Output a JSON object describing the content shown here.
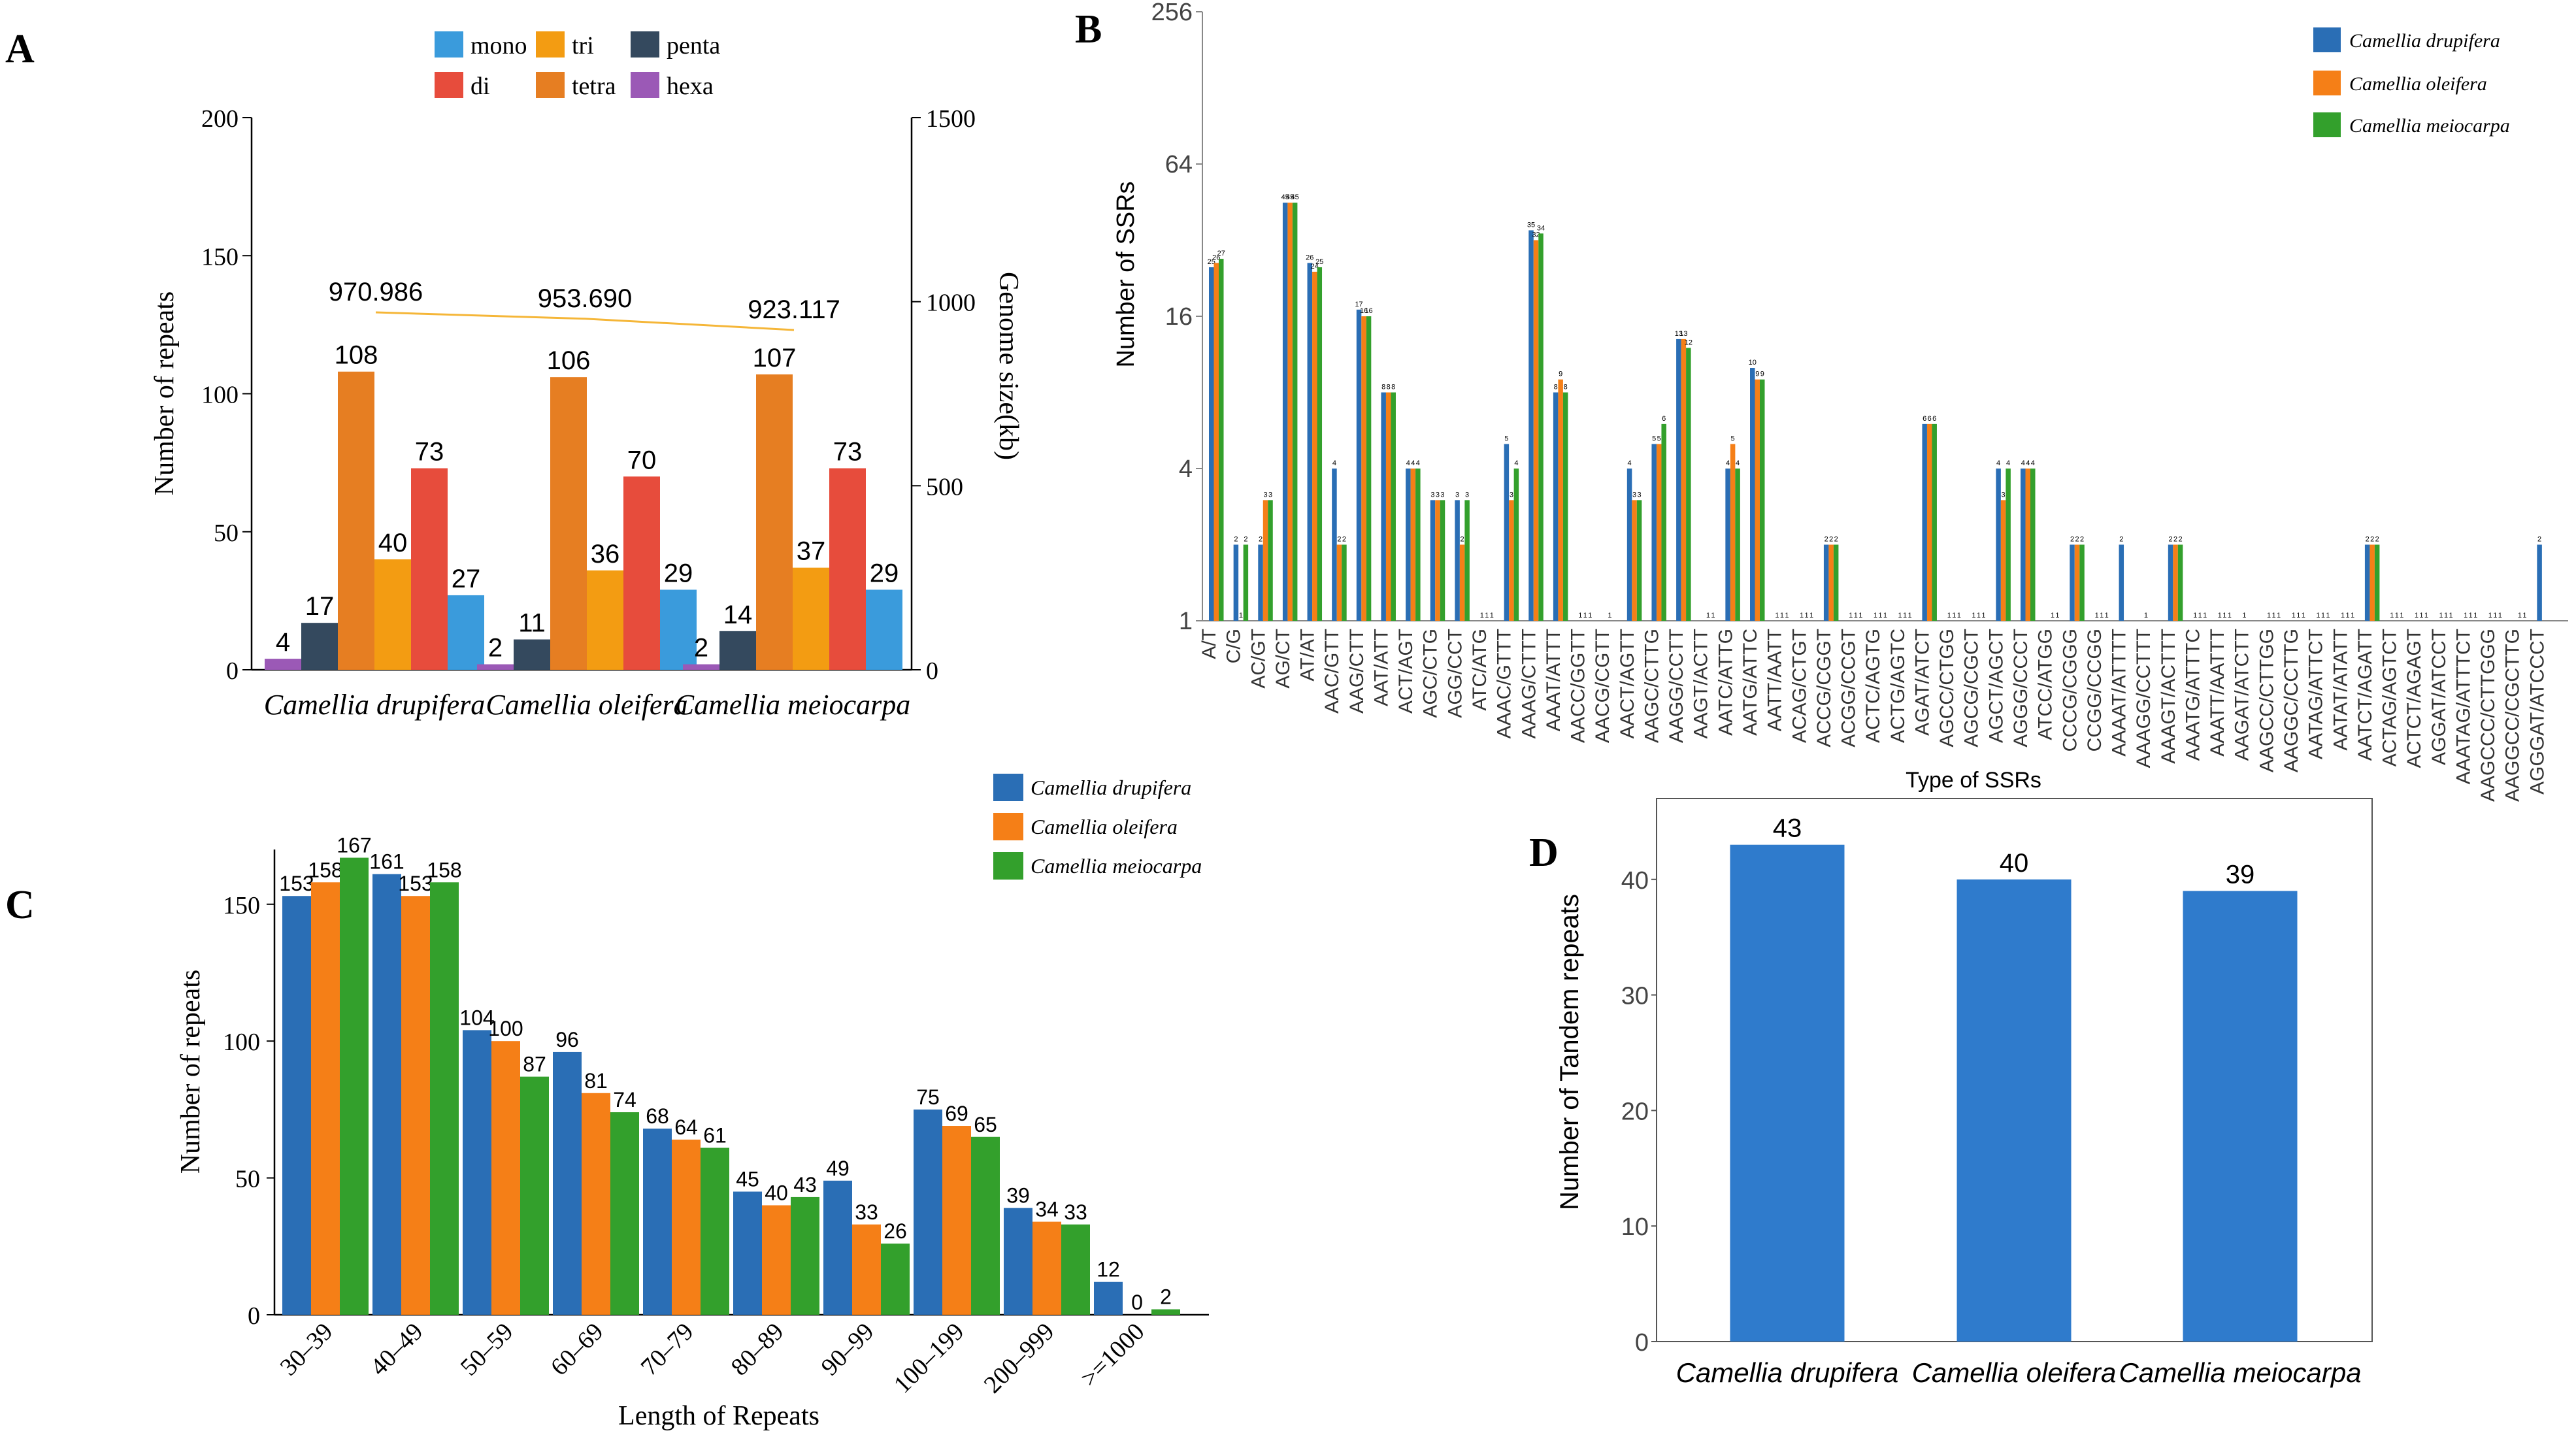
{
  "panel_labels": {
    "a": "A",
    "b": "B",
    "c": "C",
    "d": "D"
  },
  "colors": {
    "mono": "#3a9bdc",
    "di": "#e74c3c",
    "tri": "#f39c12",
    "tetra": "#e67e22",
    "penta": "#34495e",
    "hexa": "#9b59b6",
    "blue": "#2a6eb5",
    "orange": "#f57f17",
    "green": "#33a02c",
    "dblue": "#2f7bcc",
    "genome": "#f5b638"
  },
  "chart_data": [
    {
      "id": "A",
      "type": "bar",
      "legend": [
        "mono",
        "di",
        "tri",
        "tetra",
        "penta",
        "hexa"
      ],
      "categories": [
        "Camellia drupifera",
        "Camellia oleifera",
        "Camellia meiocarpa"
      ],
      "series": [
        {
          "name": "hexa",
          "values": [
            4,
            2,
            2
          ]
        },
        {
          "name": "penta",
          "values": [
            17,
            11,
            14
          ]
        },
        {
          "name": "tetra",
          "values": [
            108,
            106,
            107
          ]
        },
        {
          "name": "tri",
          "values": [
            40,
            36,
            37
          ]
        },
        {
          "name": "di",
          "values": [
            73,
            70,
            73
          ]
        },
        {
          "name": "mono",
          "values": [
            27,
            29,
            29
          ]
        }
      ],
      "genome_size": {
        "name": "Genome size(kb)",
        "values": [
          970.986,
          953.69,
          923.117
        ],
        "labels": [
          "970.986",
          "953.690",
          "923.117"
        ]
      },
      "ylabel": "Number of repeats",
      "y2label": "Genome size(kb)",
      "ylim": [
        0,
        200
      ],
      "yticks": [
        "0",
        "50",
        "100",
        "150",
        "200"
      ],
      "y2lim": [
        0,
        1500
      ],
      "y2ticks": [
        "0",
        "500",
        "1000",
        "1500"
      ]
    },
    {
      "id": "B",
      "type": "bar",
      "yscale": "log2",
      "legend": [
        "Camellia drupifera",
        "Camellia oleifera",
        "Camellia meiocarpa"
      ],
      "ylabel": "Number of SSRs",
      "xlabel": "Type of SSRs",
      "ylim": [
        1,
        256
      ],
      "yticks": [
        "1",
        "4",
        "16",
        "64",
        "256"
      ],
      "categories": [
        "A/T",
        "C/G",
        "AC/GT",
        "AG/CT",
        "AT/AT",
        "AAC/GTT",
        "AAG/CTT",
        "AAT/ATT",
        "ACT/AGT",
        "AGC/CTG",
        "AGG/CCT",
        "ATC/ATG",
        "AAAC/GTTT",
        "AAAG/CTTT",
        "AAAT/ATTT",
        "AACC/GGTT",
        "AACG/CGTT",
        "AACT/AGTT",
        "AAGC/CTTG",
        "AAGG/CCTT",
        "AAGT/ACTT",
        "AATC/ATTG",
        "AATG/ATTC",
        "AATT/AATT",
        "ACAG/CTGT",
        "ACCG/CGGT",
        "ACGG/CCGT",
        "ACTC/AGTG",
        "ACTG/AGTC",
        "AGAT/ATCT",
        "AGCC/CTGG",
        "AGCG/CGCT",
        "AGCT/AGCT",
        "AGGG/CCCT",
        "ATCC/ATGG",
        "CCCG/CGGG",
        "CCGG/CCGG",
        "AAAAT/ATTTT",
        "AAAGG/CCTTT",
        "AAAGT/ACTTT",
        "AAATG/ATTTC",
        "AAATT/AATTT",
        "AAGAT/ATCTT",
        "AAGCC/CTTGG",
        "AAGGC/CCTTG",
        "AATAG/ATTCT",
        "AATAT/ATATT",
        "AATCT/AGATT",
        "ACTAG/AGTCT",
        "ACTCT/AGAGT",
        "AGGAT/ATCCT",
        "AAATAG/ATTTCT",
        "AAGCCC/CTTGGG",
        "AAGGCC/CGCTTG",
        "AGGGAT/ATCCCT"
      ],
      "series": [
        {
          "name": "Camellia drupifera",
          "values": [
            25,
            2,
            2,
            45,
            26,
            4,
            17,
            8,
            4,
            3,
            3,
            1,
            5,
            35,
            8,
            1,
            0,
            4,
            5,
            13,
            0,
            4,
            10,
            1,
            1,
            2,
            1,
            1,
            1,
            6,
            1,
            1,
            4,
            4,
            0,
            2,
            1,
            2,
            1,
            2,
            1,
            1,
            1,
            1,
            1,
            1,
            1,
            2,
            1,
            1,
            1,
            1,
            1,
            0,
            2
          ]
        },
        {
          "name": "Camellia oleifera",
          "values": [
            26,
            1,
            3,
            45,
            24,
            2,
            16,
            8,
            4,
            3,
            2,
            1,
            3,
            32,
            9,
            1,
            1,
            3,
            5,
            13,
            1,
            5,
            9,
            1,
            1,
            2,
            1,
            1,
            1,
            6,
            1,
            1,
            3,
            4,
            1,
            2,
            1,
            0,
            0,
            2,
            1,
            1,
            0,
            1,
            1,
            1,
            1,
            2,
            1,
            1,
            1,
            1,
            1,
            1,
            0
          ]
        },
        {
          "name": "Camellia meiocarpa",
          "values": [
            27,
            2,
            3,
            45,
            25,
            2,
            16,
            8,
            4,
            3,
            3,
            1,
            4,
            34,
            8,
            1,
            0,
            3,
            6,
            12,
            1,
            4,
            9,
            1,
            1,
            2,
            1,
            1,
            1,
            6,
            1,
            1,
            4,
            4,
            1,
            2,
            1,
            0,
            0,
            2,
            1,
            1,
            0,
            1,
            1,
            1,
            1,
            2,
            1,
            1,
            1,
            1,
            1,
            1,
            0
          ]
        }
      ],
      "point_labels": [
        [
          "25",
          "2",
          "2",
          "45",
          "26",
          "4",
          "17",
          "8",
          "4",
          "3",
          "3",
          "1",
          "5",
          "35",
          "8",
          "1",
          "",
          "4",
          "5",
          "13",
          "",
          "4",
          "10",
          "1",
          "1",
          "2",
          "1",
          "1",
          "1",
          "6",
          "1",
          "1",
          "4",
          "4",
          "",
          "2",
          "1",
          "2",
          "1",
          "2",
          "1",
          "1",
          "1",
          "1",
          "1",
          "1",
          "1",
          "2",
          "1",
          "1",
          "1",
          "1",
          "1",
          "",
          "2"
        ],
        [
          "26",
          "1",
          "3",
          "45",
          "24",
          "2",
          "16",
          "8",
          "4",
          "3",
          "2",
          "1",
          "3",
          "32",
          "9",
          "1",
          "1",
          "3",
          "5",
          "13",
          "1",
          "5",
          "9",
          "1",
          "1",
          "2",
          "1",
          "1",
          "1",
          "6",
          "1",
          "1",
          "3",
          "4",
          "1",
          "2",
          "1",
          "",
          "",
          "2",
          "1",
          "1",
          "",
          "1",
          "1",
          "1",
          "1",
          "2",
          "1",
          "1",
          "1",
          "1",
          "1",
          "1",
          ""
        ],
        [
          "27",
          "2",
          "3",
          "45",
          "25",
          "2",
          "16",
          "8",
          "4",
          "3",
          "3",
          "1",
          "4",
          "34",
          "8",
          "1",
          "",
          "3",
          "6",
          "12",
          "1",
          "4",
          "9",
          "1",
          "1",
          "2",
          "1",
          "1",
          "1",
          "6",
          "1",
          "1",
          "4",
          "4",
          "1",
          "2",
          "1",
          "",
          "",
          "2",
          "1",
          "1",
          "",
          "1",
          "1",
          "1",
          "1",
          "2",
          "1",
          "1",
          "1",
          "1",
          "1",
          "1",
          ""
        ]
      ]
    },
    {
      "id": "C",
      "type": "bar",
      "legend": [
        "Camellia drupifera",
        "Camellia oleifera",
        "Camellia meiocarpa"
      ],
      "ylabel": "Number of repeats",
      "xlabel": "Length of Repeats",
      "ylim": [
        0,
        170
      ],
      "yticks": [
        "0",
        "50",
        "100",
        "150"
      ],
      "categories": [
        "30–39",
        "40–49",
        "50–59",
        "60–69",
        "70–79",
        "80–89",
        "90–99",
        "100–199",
        "200–999",
        ">=1000"
      ],
      "series": [
        {
          "name": "Camellia drupifera",
          "values": [
            153,
            161,
            104,
            96,
            68,
            45,
            49,
            75,
            39,
            12
          ]
        },
        {
          "name": "Camellia oleifera",
          "values": [
            158,
            153,
            100,
            81,
            64,
            40,
            33,
            69,
            34,
            0
          ]
        },
        {
          "name": "Camellia meiocarpa",
          "values": [
            167,
            158,
            87,
            74,
            61,
            43,
            26,
            65,
            33,
            2
          ]
        }
      ]
    },
    {
      "id": "D",
      "type": "bar",
      "ylabel": "Number of Tandem repeats",
      "ylim": [
        0,
        47
      ],
      "yticks": [
        "0",
        "10",
        "20",
        "30",
        "40"
      ],
      "categories": [
        "Camellia drupifera",
        "Camellia oleifera",
        "Camellia meiocarpa"
      ],
      "values": [
        43,
        40,
        39
      ]
    }
  ]
}
